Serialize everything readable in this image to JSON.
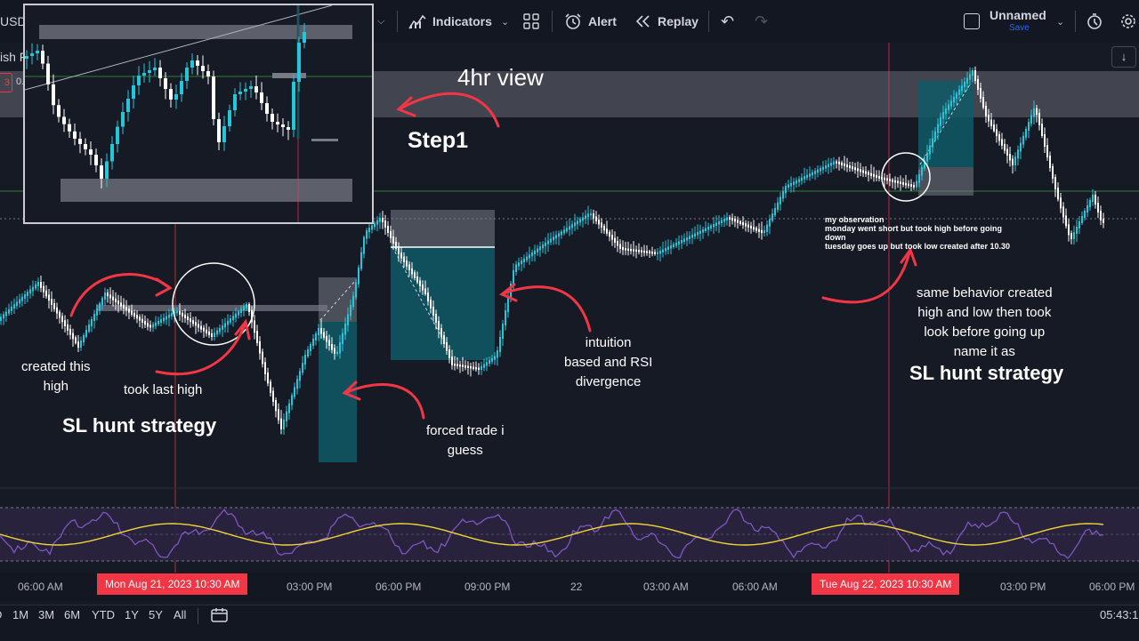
{
  "toolbar": {
    "symbol_fragment": "USD",
    "indicators": "Indicators",
    "alert": "Alert",
    "replay": "Replay",
    "layout_name": "Unnamed",
    "save": "Save"
  },
  "legend": {
    "title_fragment": "ish F",
    "badge": "3",
    "value_fragment": "0."
  },
  "annotations": {
    "inset_label": "4hr view",
    "step": "Step1",
    "created_high": "created this\nhigh",
    "took_last_high": "took last high",
    "sl_hunt_left": "SL hunt strategy",
    "forced_trade": "forced trade i\nguess",
    "intuition": "intuition\nbased and RSI\ndivergence",
    "observation": [
      "my observation",
      "monday went short but took high before going",
      "down",
      "tuesday goes up but took low created after 10.30"
    ],
    "same_behavior": "same behavior created\nhigh and low then took\nlook before going up\nname it as",
    "sl_hunt_right": "SL hunt strategy"
  },
  "time_axis": {
    "ticks": [
      "06:00 AM",
      "03:00 PM",
      "06:00 PM",
      "09:00 PM",
      "22",
      "03:00 AM",
      "06:00 AM",
      "03:00 PM",
      "06:00 PM"
    ],
    "highlight_left": "Mon Aug 21, 2023   10:30 AM",
    "highlight_right": "Tue Aug 22, 2023   10:30 AM"
  },
  "ranges": [
    "D",
    "1M",
    "3M",
    "6M",
    "YTD",
    "1Y",
    "5Y",
    "All"
  ],
  "clock": "05:43:1",
  "colors": {
    "accent_red": "#f23645",
    "candle_up": "#26c6da",
    "candle_down": "#ffffff",
    "rsi_line": "#7e57c2",
    "rsi_ma": "#f0d43a",
    "zone_teal": "#0e5b66"
  }
}
